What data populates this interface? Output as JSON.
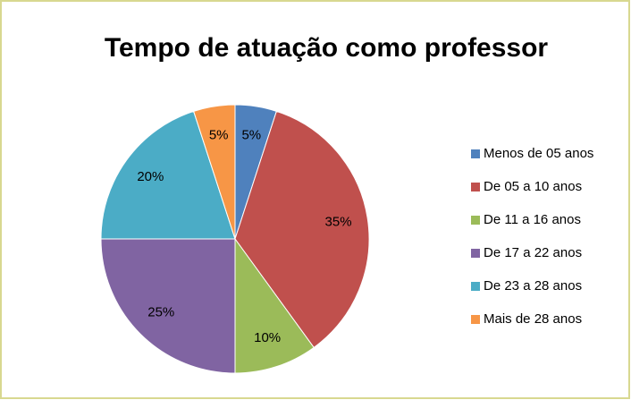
{
  "chart_data": {
    "type": "pie",
    "title": "Tempo de atuação como professor",
    "categories": [
      "Menos de 05 anos",
      "De 05 a 10 anos",
      "De 11 a 16 anos",
      "De 17 a 22 anos",
      "De 23 a 28 anos",
      "Mais de 28 anos"
    ],
    "values": [
      5,
      35,
      10,
      25,
      20,
      5
    ],
    "value_labels": [
      "5%",
      "35%",
      "10%",
      "25%",
      "20%",
      "5%"
    ],
    "colors": [
      "#4f81bd",
      "#c0504d",
      "#9bbb59",
      "#8064a2",
      "#4bacc6",
      "#f79646"
    ],
    "legend": "right"
  }
}
